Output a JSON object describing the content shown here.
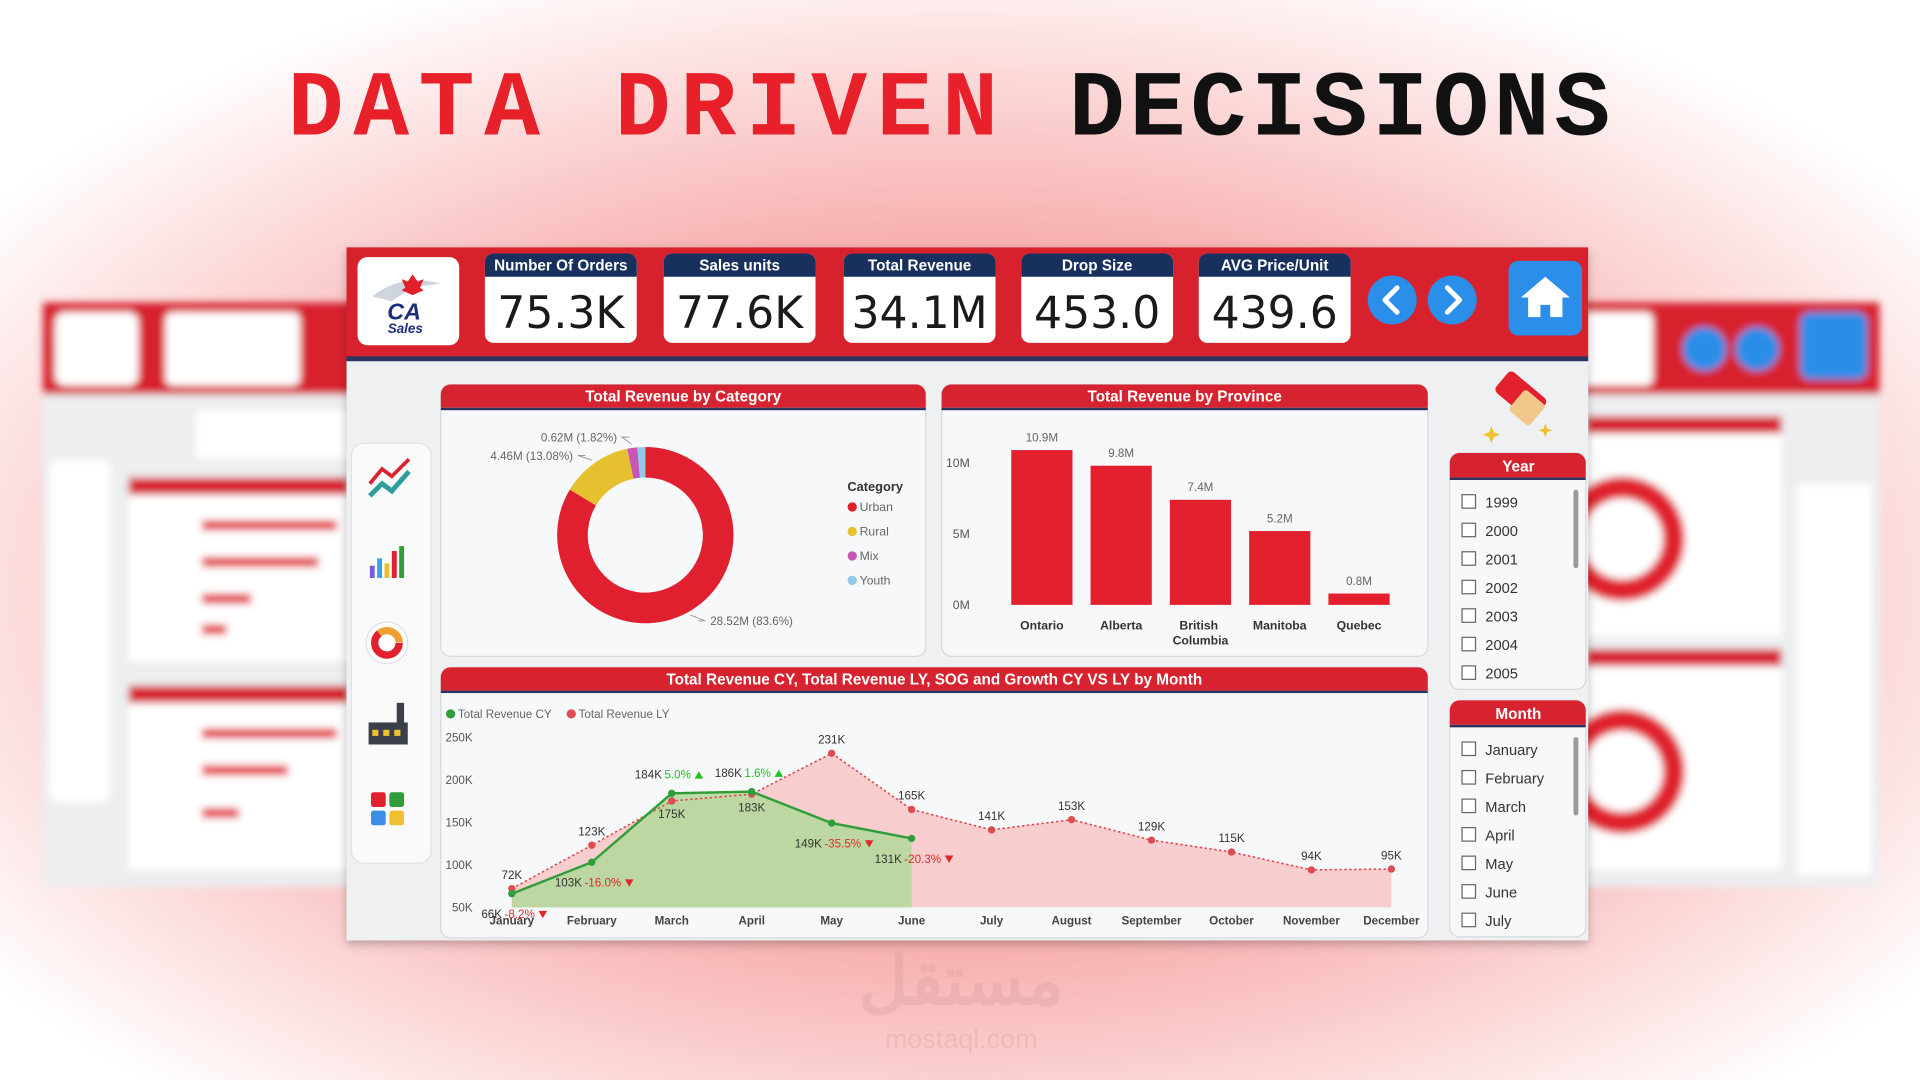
{
  "headline": [
    "DATA DRIVEN",
    "DECISIONS"
  ],
  "logo": {
    "initials": "CA",
    "name": "Sales"
  },
  "kpis": [
    {
      "label": "Number Of Orders",
      "value": "75.3K"
    },
    {
      "label": "Sales units",
      "value": "77.6K"
    },
    {
      "label": "Total Revenue",
      "value": "34.1M"
    },
    {
      "label": "Drop Size",
      "value": "453.0"
    },
    {
      "label": "AVG Price/Unit",
      "value": "439.6"
    }
  ],
  "chart_data": [
    {
      "type": "pie",
      "donut": true,
      "title": "Total Revenue by Category",
      "legend_title": "Category",
      "categories": [
        "Urban",
        "Rural",
        "Mix",
        "Youth"
      ],
      "values": [
        28.52,
        4.46,
        0.62,
        0.5
      ],
      "value_labels": [
        "28.52M (83.6%)",
        "4.46M (13.08%)",
        "0.62M (1.82%)",
        null
      ],
      "colors": [
        "#e0202f",
        "#e6c12f",
        "#c955b4",
        "#93c9ea"
      ]
    },
    {
      "type": "bar",
      "title": "Total Revenue by Province",
      "categories": [
        "Ontario",
        "Alberta",
        "British Columbia",
        "Manitoba",
        "Quebec"
      ],
      "values": [
        10.9,
        9.8,
        7.4,
        5.2,
        0.8
      ],
      "value_labels": [
        "10.9M",
        "9.8M",
        "7.4M",
        "5.2M",
        "0.8M"
      ],
      "color": "#e3202e",
      "ylim": [
        0,
        12
      ],
      "yticks": [
        {
          "value": 0,
          "label": "0M"
        },
        {
          "value": 5,
          "label": "5M"
        },
        {
          "value": 10,
          "label": "10M"
        }
      ]
    },
    {
      "type": "line",
      "area": true,
      "title": "Total Revenue CY, Total Revenue LY, SOG and Growth CY VS LY by Month",
      "categories": [
        "January",
        "February",
        "March",
        "April",
        "May",
        "June",
        "July",
        "August",
        "September",
        "October",
        "November",
        "December"
      ],
      "series": [
        {
          "name": "Total Revenue CY",
          "color": "#2f9e3a",
          "fill": "#b3d89a",
          "values": [
            66,
            103,
            184,
            186,
            149,
            131,
            null,
            null,
            null,
            null,
            null,
            null
          ],
          "value_labels": [
            "66K",
            "103K",
            "184K",
            "186K",
            "149K",
            "131K",
            null,
            null,
            null,
            null,
            null,
            null
          ]
        },
        {
          "name": "Total Revenue LY",
          "color": "#e04a52",
          "fill": "#f7c6c6",
          "values": [
            72,
            123,
            175,
            183,
            231,
            165,
            141,
            153,
            129,
            115,
            94,
            95
          ],
          "value_labels": [
            "72K",
            "123K",
            "175K",
            "183K",
            "231K",
            "165K",
            "141K",
            "153K",
            "129K",
            "115K",
            "94K",
            "95K"
          ]
        }
      ],
      "growth": {
        "values": [
          -8.2,
          -16.0,
          5.0,
          1.6,
          -35.5,
          -20.3,
          null,
          null,
          null,
          null,
          null,
          null
        ],
        "value_labels": [
          "-8.2%",
          "-16.0%",
          "5.0%",
          "1.6%",
          "-35.5%",
          "-20.3%",
          null,
          null,
          null,
          null,
          null,
          null
        ],
        "positive_color": "#22c222",
        "negative_color": "#e02a2a"
      },
      "ylim": [
        50,
        250
      ],
      "yticks": [
        {
          "value": 50,
          "label": "50K"
        },
        {
          "value": 100,
          "label": "100K"
        },
        {
          "value": 150,
          "label": "150K"
        },
        {
          "value": 200,
          "label": "200K"
        },
        {
          "value": 250,
          "label": "250K"
        }
      ]
    }
  ],
  "slicers": [
    {
      "title": "Year",
      "items": [
        "1999",
        "2000",
        "2001",
        "2002",
        "2003",
        "2004",
        "2005"
      ]
    },
    {
      "title": "Month",
      "items": [
        "January",
        "February",
        "March",
        "April",
        "May",
        "June",
        "July"
      ]
    }
  ],
  "watermark": [
    "مستقل",
    "mostaql.com"
  ]
}
